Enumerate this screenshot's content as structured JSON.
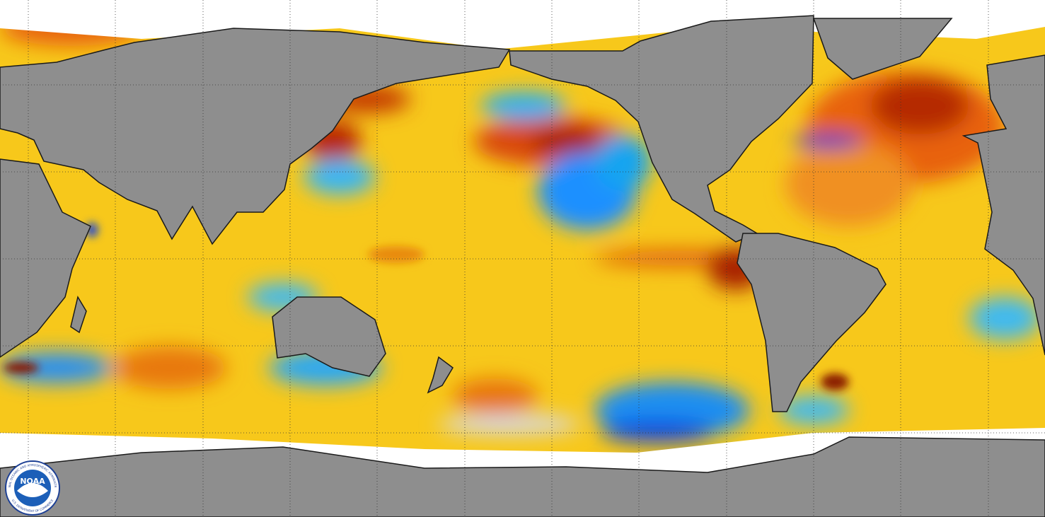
{
  "logo": {
    "acronym": "NOAA",
    "agency": "NATIONAL OCEANIC AND ATMOSPHERIC ADMINISTRATION",
    "department": "U.S. DEPARTMENT OF COMMERCE"
  }
}
